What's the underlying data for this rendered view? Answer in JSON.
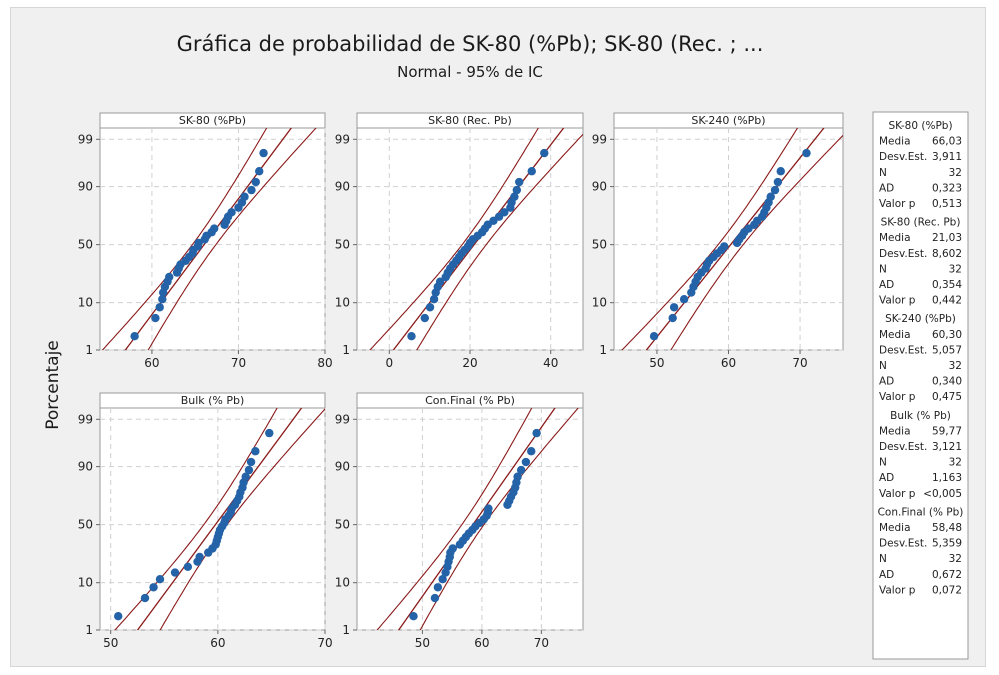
{
  "title": "Gráfica de probabilidad de SK-80 (%Pb); SK-80 (Rec. ; ...",
  "subtitle": "Normal - 95% de IC",
  "ylabel": "Porcentaje",
  "colors": {
    "points": "#2563a8",
    "fit_line": "#8b1a1a",
    "ci_line": "#8b1a1a",
    "grid": "#d0d0d0"
  },
  "legend_labels": {
    "mean": "Media",
    "sd": "Desv.Est.",
    "n": "N",
    "ad": "AD",
    "p": "Valor p"
  },
  "chart_data": [
    {
      "type": "scatter",
      "subtype": "normal probability plot with 95% CI",
      "panel_title": "SK-80 (%Pb)",
      "xlim": [
        54,
        80
      ],
      "xticks": [
        60,
        70,
        80
      ],
      "yticks": [
        1,
        10,
        50,
        90,
        99
      ],
      "ylim_percent": [
        1,
        99.5
      ],
      "stats": {
        "mean": "66,03",
        "sd": "3,911",
        "n": "32",
        "ad": "0,323",
        "p": "0,513"
      },
      "mean": 66.03,
      "sd": 3.911,
      "n": 32,
      "x": [
        58.0,
        60.4,
        60.9,
        61.2,
        61.3,
        61.5,
        61.8,
        62.0,
        62.9,
        63.1,
        63.3,
        63.9,
        64.3,
        64.7,
        64.8,
        65.3,
        65.4,
        66.1,
        66.3,
        66.9,
        67.2,
        68.4,
        68.6,
        68.8,
        69.2,
        70.0,
        70.4,
        70.7,
        71.5,
        72.0,
        72.4,
        72.9
      ]
    },
    {
      "type": "scatter",
      "subtype": "normal probability plot with 95% CI",
      "panel_title": "SK-80 (Rec. Pb)",
      "xlim": [
        -8,
        48
      ],
      "xticks": [
        0,
        20,
        40
      ],
      "yticks": [
        1,
        10,
        50,
        90,
        99
      ],
      "ylim_percent": [
        1,
        99.5
      ],
      "stats": {
        "mean": "21,03",
        "sd": "8,602",
        "n": "32",
        "ad": "0,354",
        "p": "0,442"
      },
      "mean": 21.03,
      "sd": 8.602,
      "n": 32,
      "x": [
        5.5,
        8.8,
        10.1,
        11.1,
        11.5,
        12.0,
        12.6,
        14.0,
        14.5,
        15.1,
        15.8,
        16.6,
        17.3,
        17.9,
        18.7,
        19.5,
        20.0,
        20.7,
        21.9,
        23.0,
        23.7,
        24.4,
        25.8,
        27.2,
        28.5,
        30.0,
        30.3,
        31.0,
        31.6,
        32.2,
        35.3,
        38.4
      ]
    },
    {
      "type": "scatter",
      "subtype": "normal probability plot with 95% CI",
      "panel_title": "SK-240 (%Pb)",
      "xlim": [
        44,
        76
      ],
      "xticks": [
        50,
        60,
        70
      ],
      "yticks": [
        1,
        10,
        50,
        90,
        99
      ],
      "ylim_percent": [
        1,
        99.5
      ],
      "stats": {
        "mean": "60,30",
        "sd": "5,057",
        "n": "32",
        "ad": "0,340",
        "p": "0,475"
      },
      "mean": 60.3,
      "sd": 5.057,
      "n": 32,
      "x": [
        49.6,
        52.2,
        52.4,
        53.8,
        54.8,
        55.1,
        55.4,
        55.7,
        56.2,
        56.8,
        57.0,
        57.3,
        57.9,
        58.4,
        59.0,
        59.4,
        61.2,
        61.5,
        61.9,
        62.2,
        62.8,
        63.6,
        64.0,
        64.7,
        65.0,
        65.3,
        65.6,
        65.9,
        66.5,
        66.9,
        67.3,
        70.9
      ]
    },
    {
      "type": "scatter",
      "subtype": "normal probability plot with 95% CI",
      "panel_title": "Bulk (% Pb)",
      "xlim": [
        49,
        70
      ],
      "xticks": [
        50,
        60,
        70
      ],
      "yticks": [
        1,
        10,
        50,
        90,
        99
      ],
      "ylim_percent": [
        1,
        99.5
      ],
      "stats": {
        "mean": "59,77",
        "sd": "3,121",
        "n": "32",
        "ad": "1,163",
        "p": "<0,005"
      },
      "mean": 59.77,
      "sd": 3.121,
      "n": 32,
      "x": [
        50.7,
        53.2,
        54.0,
        54.6,
        56.0,
        57.2,
        58.1,
        58.3,
        59.1,
        59.5,
        59.8,
        59.9,
        60.0,
        60.1,
        60.2,
        60.4,
        60.6,
        60.7,
        61.0,
        61.2,
        61.3,
        61.6,
        61.8,
        62.0,
        62.1,
        62.3,
        62.4,
        62.6,
        62.9,
        63.1,
        63.5,
        64.8
      ]
    },
    {
      "type": "scatter",
      "subtype": "normal probability plot with 95% CI",
      "panel_title": "Con.Final (% Pb)",
      "xlim": [
        39,
        77
      ],
      "xticks": [
        50,
        60,
        70
      ],
      "yticks": [
        1,
        10,
        50,
        90,
        99
      ],
      "ylim_percent": [
        1,
        99.5
      ],
      "stats": {
        "mean": "58,48",
        "sd": "5,359",
        "n": "32",
        "ad": "0,672",
        "p": "0,072"
      },
      "mean": 58.48,
      "sd": 5.359,
      "n": 32,
      "x": [
        48.5,
        52.1,
        52.6,
        53.4,
        53.9,
        54.2,
        54.4,
        54.6,
        54.7,
        55.1,
        56.3,
        56.8,
        57.3,
        57.8,
        58.4,
        58.9,
        59.6,
        60.3,
        60.8,
        61.0,
        61.1,
        64.3,
        64.6,
        64.9,
        65.3,
        65.6,
        65.8,
        66.0,
        66.6,
        67.4,
        68.3,
        69.2
      ]
    }
  ]
}
